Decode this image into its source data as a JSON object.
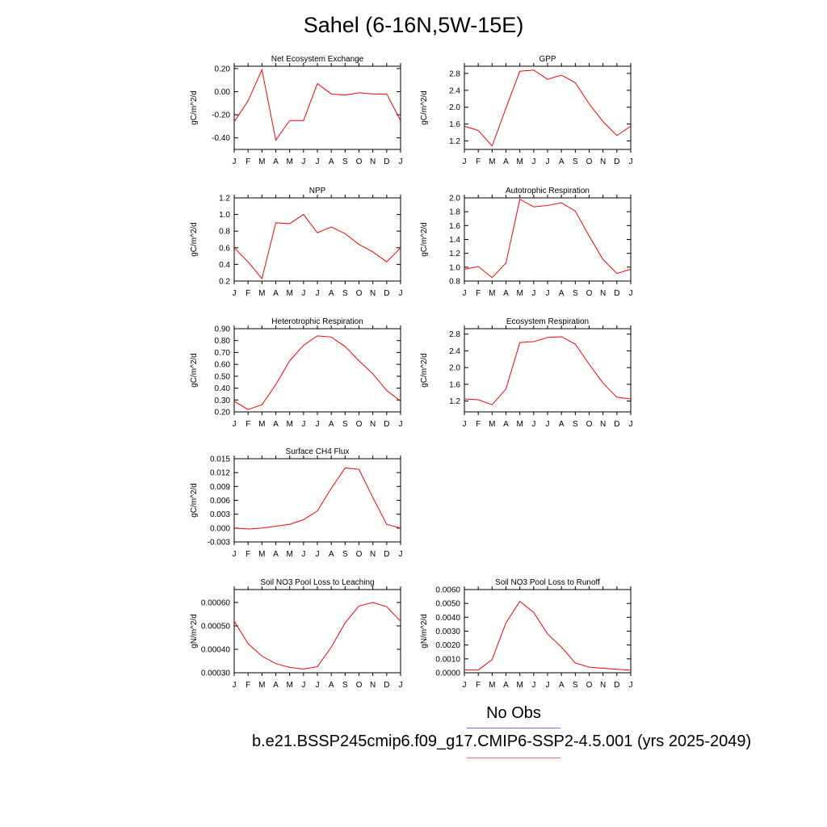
{
  "page": {
    "title": "Sahel (6-16N,5W-15E)",
    "colors": {
      "series": "#ff0000",
      "obs_line": "#6b6bff",
      "case_line": "#ff6b6b"
    }
  },
  "legend": {
    "obs_label": "No Obs",
    "case_label": "b.e21.BSSP245cmip6.f09_g17.CMIP6-SSP2-4.5.001 (yrs 2025-2049)"
  },
  "chart_data": [
    {
      "type": "line",
      "title": "Net Ecosystem Exchange",
      "ylabel": "gC/m^2/d",
      "categories": [
        "J",
        "F",
        "M",
        "A",
        "M",
        "J",
        "J",
        "A",
        "S",
        "O",
        "N",
        "D",
        "J"
      ],
      "values": [
        -0.26,
        -0.08,
        0.19,
        -0.42,
        -0.25,
        -0.25,
        0.07,
        -0.02,
        -0.03,
        -0.01,
        -0.02,
        -0.02,
        -0.25
      ],
      "ylim": [
        -0.5,
        0.22
      ],
      "yticks": [
        -0.4,
        -0.2,
        0.0,
        0.2
      ],
      "ytick_labels": [
        "-0.40",
        "-0.20",
        "0.00",
        "0.20"
      ]
    },
    {
      "type": "line",
      "title": "GPP",
      "ylabel": "gC/m^2/d",
      "categories": [
        "J",
        "F",
        "M",
        "A",
        "M",
        "J",
        "J",
        "A",
        "S",
        "O",
        "N",
        "D",
        "J"
      ],
      "values": [
        1.55,
        1.45,
        1.08,
        1.98,
        2.85,
        2.88,
        2.66,
        2.76,
        2.58,
        2.08,
        1.66,
        1.33,
        1.55
      ],
      "ylim": [
        1.0,
        2.97
      ],
      "yticks": [
        1.2,
        1.6,
        2.0,
        2.4,
        2.8
      ],
      "ytick_labels": [
        "1.2",
        "1.6",
        "2.0",
        "2.4",
        "2.8"
      ]
    },
    {
      "type": "line",
      "title": "NPP",
      "ylabel": "gC/m^2/d",
      "categories": [
        "J",
        "F",
        "M",
        "A",
        "M",
        "J",
        "J",
        "A",
        "S",
        "O",
        "N",
        "D",
        "J"
      ],
      "values": [
        0.6,
        0.43,
        0.23,
        0.9,
        0.89,
        1.0,
        0.78,
        0.85,
        0.77,
        0.64,
        0.55,
        0.43,
        0.6
      ],
      "ylim": [
        0.2,
        1.2
      ],
      "yticks": [
        0.2,
        0.4,
        0.6,
        0.8,
        1.0,
        1.2
      ],
      "ytick_labels": [
        "0.2",
        "0.4",
        "0.6",
        "0.8",
        "1.0",
        "1.2"
      ]
    },
    {
      "type": "line",
      "title": "Autotrophic Respiration",
      "ylabel": "gC/m^2/d",
      "categories": [
        "J",
        "F",
        "M",
        "A",
        "M",
        "J",
        "J",
        "A",
        "S",
        "O",
        "N",
        "D",
        "J"
      ],
      "values": [
        0.97,
        1.01,
        0.85,
        1.06,
        1.98,
        1.87,
        1.89,
        1.93,
        1.81,
        1.45,
        1.11,
        0.91,
        0.97
      ],
      "ylim": [
        0.8,
        2.0
      ],
      "yticks": [
        0.8,
        1.0,
        1.2,
        1.4,
        1.6,
        1.8,
        2.0
      ],
      "ytick_labels": [
        "0.8",
        "1.0",
        "1.2",
        "1.4",
        "1.6",
        "1.8",
        "2.0"
      ]
    },
    {
      "type": "line",
      "title": "Heterotrophic Respiration",
      "ylabel": "gC/m^2/d",
      "categories": [
        "J",
        "F",
        "M",
        "A",
        "M",
        "J",
        "J",
        "A",
        "S",
        "O",
        "N",
        "D",
        "J"
      ],
      "values": [
        0.29,
        0.22,
        0.26,
        0.43,
        0.63,
        0.76,
        0.84,
        0.83,
        0.75,
        0.63,
        0.52,
        0.38,
        0.29
      ],
      "ylim": [
        0.2,
        0.9
      ],
      "yticks": [
        0.2,
        0.3,
        0.4,
        0.5,
        0.6,
        0.7,
        0.8,
        0.9
      ],
      "ytick_labels": [
        "0.20",
        "0.30",
        "0.40",
        "0.50",
        "0.60",
        "0.70",
        "0.80",
        "0.90"
      ]
    },
    {
      "type": "line",
      "title": "Ecosystem Respiration",
      "ylabel": "gC/m^2/d",
      "categories": [
        "J",
        "F",
        "M",
        "A",
        "M",
        "J",
        "J",
        "A",
        "S",
        "O",
        "N",
        "D",
        "J"
      ],
      "values": [
        1.25,
        1.23,
        1.11,
        1.49,
        2.6,
        2.62,
        2.72,
        2.74,
        2.56,
        2.08,
        1.63,
        1.29,
        1.25
      ],
      "ylim": [
        0.94,
        2.93
      ],
      "yticks": [
        1.2,
        1.6,
        2.0,
        2.4,
        2.8
      ],
      "ytick_labels": [
        "1.2",
        "1.6",
        "2.0",
        "2.4",
        "2.8"
      ]
    },
    {
      "type": "line",
      "title": "Surface CH4 Flux",
      "ylabel": "gC/m^2/d",
      "categories": [
        "J",
        "F",
        "M",
        "A",
        "M",
        "J",
        "J",
        "A",
        "S",
        "O",
        "N",
        "D",
        "J"
      ],
      "values": [
        0.0,
        -0.0002,
        0.0,
        0.0004,
        0.0008,
        0.0018,
        0.0037,
        0.0086,
        0.013,
        0.0127,
        0.0066,
        0.0008,
        0.0
      ],
      "ylim": [
        -0.003,
        0.015
      ],
      "yticks": [
        -0.003,
        0.0,
        0.003,
        0.006,
        0.009,
        0.012,
        0.015
      ],
      "ytick_labels": [
        "-0.003",
        "0.000",
        "0.003",
        "0.006",
        "0.009",
        "0.012",
        "0.015"
      ]
    },
    {
      "type": "line",
      "title": "Soil NO3 Pool Loss to Leaching",
      "ylabel": "gN/m^2/d",
      "categories": [
        "J",
        "F",
        "M",
        "A",
        "M",
        "J",
        "J",
        "A",
        "S",
        "O",
        "N",
        "D",
        "J"
      ],
      "values": [
        0.00052,
        0.000424,
        0.000371,
        0.000339,
        0.000323,
        0.000316,
        0.000326,
        0.000409,
        0.000513,
        0.000585,
        0.0006,
        0.000582,
        0.00052
      ],
      "ylim": [
        0.0003,
        0.000655
      ],
      "yticks": [
        0.0003,
        0.0004,
        0.0005,
        0.0006
      ],
      "ytick_labels": [
        "0.00030",
        "0.00040",
        "0.00050",
        "0.00060"
      ]
    },
    {
      "type": "line",
      "title": "Soil NO3 Pool Loss to Runoff",
      "ylabel": "gN/m^2/d",
      "categories": [
        "J",
        "F",
        "M",
        "A",
        "M",
        "J",
        "J",
        "A",
        "S",
        "O",
        "N",
        "D",
        "J"
      ],
      "values": [
        0.0002,
        0.0002,
        0.00095,
        0.0036,
        0.00515,
        0.00435,
        0.0028,
        0.00185,
        0.0007,
        0.0004,
        0.00032,
        0.00025,
        0.00018
      ],
      "ylim": [
        0.0,
        0.006
      ],
      "yticks": [
        0.0,
        0.001,
        0.002,
        0.003,
        0.004,
        0.005,
        0.006
      ],
      "ytick_labels": [
        "0.0000",
        "0.0010",
        "0.0020",
        "0.0030",
        "0.0040",
        "0.0050",
        "0.0060"
      ]
    }
  ]
}
